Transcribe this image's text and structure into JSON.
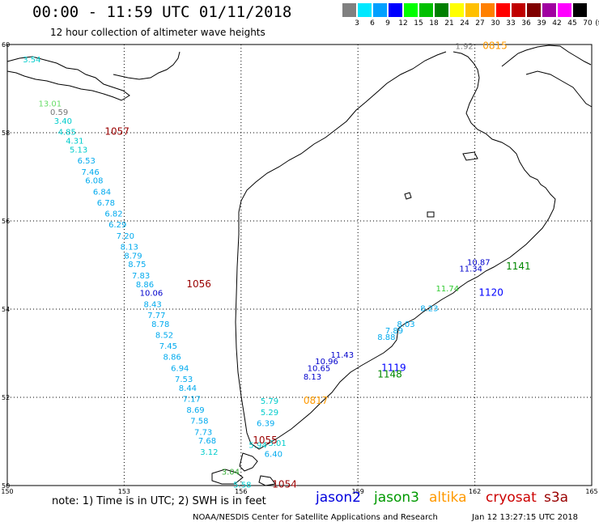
{
  "title": "00:00 - 11:59 UTC 01/11/2018",
  "subtitle": "12 hour collection of altimeter wave heights",
  "legend": {
    "unit": "(ft)",
    "bins": [
      {
        "label": "3",
        "color": "#808080"
      },
      {
        "label": "6",
        "color": "#00e8ff"
      },
      {
        "label": "9",
        "color": "#00a0ff"
      },
      {
        "label": "12",
        "color": "#0000ff"
      },
      {
        "label": "15",
        "color": "#00ff00"
      },
      {
        "label": "18",
        "color": "#00c000"
      },
      {
        "label": "21",
        "color": "#008000"
      },
      {
        "label": "24",
        "color": "#ffff00"
      },
      {
        "label": "27",
        "color": "#ffc000"
      },
      {
        "label": "30",
        "color": "#ff8000"
      },
      {
        "label": "33",
        "color": "#ff0000"
      },
      {
        "label": "36",
        "color": "#c00000"
      },
      {
        "label": "39",
        "color": "#800000"
      },
      {
        "label": "42",
        "color": "#a000a0"
      },
      {
        "label": "45",
        "color": "#ff00ff"
      },
      {
        "label": "70",
        "color": "#000000"
      }
    ]
  },
  "axes": {
    "lon_ticks": [
      "150",
      "153",
      "156",
      "159",
      "162",
      "165"
    ],
    "lat_ticks": [
      "60",
      "58",
      "56",
      "54",
      "52",
      "50"
    ]
  },
  "time_labels": [
    {
      "text": "0815",
      "color": "#ff9900",
      "lon": 162.2,
      "lat": 59.9
    },
    {
      "text": "1057",
      "color": "#990000",
      "lon": 152.5,
      "lat": 57.95
    },
    {
      "text": "1056",
      "color": "#990000",
      "lon": 154.6,
      "lat": 54.5
    },
    {
      "text": "1141",
      "color": "#008800",
      "lon": 162.8,
      "lat": 54.9
    },
    {
      "text": "1120",
      "color": "#0000ff",
      "lon": 162.1,
      "lat": 54.3
    },
    {
      "text": "1119",
      "color": "#0000ff",
      "lon": 159.6,
      "lat": 52.6
    },
    {
      "text": "1148",
      "color": "#008800",
      "lon": 159.5,
      "lat": 52.45
    },
    {
      "text": "0817",
      "color": "#ff9900",
      "lon": 157.6,
      "lat": 51.85
    },
    {
      "text": "1055",
      "color": "#990000",
      "lon": 156.3,
      "lat": 50.95
    },
    {
      "text": "1054",
      "color": "#990000",
      "lon": 156.8,
      "lat": 49.95
    }
  ],
  "tracks": [
    {
      "name": "cryosat-west",
      "points": [
        {
          "v": "3.54",
          "lon": 150.4,
          "lat": 59.6,
          "c": "#00cccc"
        },
        {
          "v": "13.01",
          "lon": 150.8,
          "lat": 58.6,
          "c": "#66dd66"
        },
        {
          "v": "0.59",
          "lon": 151.1,
          "lat": 58.4,
          "c": "#777777"
        },
        {
          "v": "3.40",
          "lon": 151.2,
          "lat": 58.2,
          "c": "#00cccc"
        },
        {
          "v": "4.85",
          "lon": 151.3,
          "lat": 57.95,
          "c": "#00cccc"
        },
        {
          "v": "4.31",
          "lon": 151.5,
          "lat": 57.75,
          "c": "#00cccc"
        },
        {
          "v": "5.13",
          "lon": 151.6,
          "lat": 57.55,
          "c": "#00cccc"
        },
        {
          "v": "6.53",
          "lon": 151.8,
          "lat": 57.3,
          "c": "#00aaee"
        },
        {
          "v": "7.46",
          "lon": 151.9,
          "lat": 57.05,
          "c": "#00aaee"
        },
        {
          "v": "6.08",
          "lon": 152.0,
          "lat": 56.85,
          "c": "#00aaee"
        },
        {
          "v": "6.84",
          "lon": 152.2,
          "lat": 56.6,
          "c": "#00aaee"
        },
        {
          "v": "6.78",
          "lon": 152.3,
          "lat": 56.35,
          "c": "#00aaee"
        },
        {
          "v": "6.82",
          "lon": 152.5,
          "lat": 56.1,
          "c": "#00aaee"
        },
        {
          "v": "6.29",
          "lon": 152.6,
          "lat": 55.85,
          "c": "#00aaee"
        },
        {
          "v": "7.20",
          "lon": 152.8,
          "lat": 55.6,
          "c": "#00aaee"
        },
        {
          "v": "8.13",
          "lon": 152.9,
          "lat": 55.35,
          "c": "#00aaee"
        },
        {
          "v": "8.79",
          "lon": 153.0,
          "lat": 55.15,
          "c": "#00aaee"
        },
        {
          "v": "8.75",
          "lon": 153.1,
          "lat": 54.95,
          "c": "#00aaee"
        },
        {
          "v": "7.83",
          "lon": 153.2,
          "lat": 54.7,
          "c": "#00aaee"
        },
        {
          "v": "8.86",
          "lon": 153.3,
          "lat": 54.5,
          "c": "#00aaee"
        },
        {
          "v": "10.06",
          "lon": 153.4,
          "lat": 54.3,
          "c": "#0000cc"
        },
        {
          "v": "8.43",
          "lon": 153.5,
          "lat": 54.05,
          "c": "#00aaee"
        },
        {
          "v": "7.77",
          "lon": 153.6,
          "lat": 53.8,
          "c": "#00aaee"
        },
        {
          "v": "8.78",
          "lon": 153.7,
          "lat": 53.6,
          "c": "#00aaee"
        },
        {
          "v": "8.52",
          "lon": 153.8,
          "lat": 53.35,
          "c": "#00aaee"
        },
        {
          "v": "7.45",
          "lon": 153.9,
          "lat": 53.1,
          "c": "#00aaee"
        },
        {
          "v": "8.86",
          "lon": 154.0,
          "lat": 52.85,
          "c": "#00aaee"
        },
        {
          "v": "6.94",
          "lon": 154.2,
          "lat": 52.6,
          "c": "#00aaee"
        },
        {
          "v": "7.53",
          "lon": 154.3,
          "lat": 52.35,
          "c": "#00aaee"
        },
        {
          "v": "8.44",
          "lon": 154.4,
          "lat": 52.15,
          "c": "#00aaee"
        },
        {
          "v": "7.17",
          "lon": 154.5,
          "lat": 51.9,
          "c": "#00aaee"
        },
        {
          "v": "8.69",
          "lon": 154.6,
          "lat": 51.65,
          "c": "#00aaee"
        },
        {
          "v": "7.58",
          "lon": 154.7,
          "lat": 51.4,
          "c": "#00aaee"
        },
        {
          "v": "7.73",
          "lon": 154.8,
          "lat": 51.15,
          "c": "#00aaee"
        },
        {
          "v": "7.68",
          "lon": 154.9,
          "lat": 50.95,
          "c": "#00aaee"
        },
        {
          "v": "3.12",
          "lon": 154.95,
          "lat": 50.7,
          "c": "#00cccc"
        }
      ]
    },
    {
      "name": "altika-coast",
      "points": [
        {
          "v": "1.92",
          "lon": 161.5,
          "lat": 59.9,
          "c": "#777777"
        },
        {
          "v": "5.79",
          "lon": 156.5,
          "lat": 51.85,
          "c": "#00cccc"
        },
        {
          "v": "5.29",
          "lon": 156.5,
          "lat": 51.6,
          "c": "#00cccc"
        },
        {
          "v": "6.39",
          "lon": 156.4,
          "lat": 51.35,
          "c": "#00aaee"
        },
        {
          "v": "5.01",
          "lon": 156.7,
          "lat": 50.9,
          "c": "#00cccc"
        },
        {
          "v": "6.40",
          "lon": 156.6,
          "lat": 50.65,
          "c": "#00aaee"
        },
        {
          "v": "5.94",
          "lon": 156.2,
          "lat": 50.85,
          "c": "#00cccc"
        },
        {
          "v": "3.04",
          "lon": 155.5,
          "lat": 50.25,
          "c": "#33aa33"
        },
        {
          "v": "5.58",
          "lon": 155.8,
          "lat": 49.95,
          "c": "#00cccc"
        }
      ]
    },
    {
      "name": "jason-se",
      "points": [
        {
          "v": "11.34",
          "lon": 161.6,
          "lat": 54.85,
          "c": "#0000cc"
        },
        {
          "v": "10.87",
          "lon": 161.8,
          "lat": 55.0,
          "c": "#0000cc"
        },
        {
          "v": "11.74",
          "lon": 161.0,
          "lat": 54.4,
          "c": "#33cc33"
        },
        {
          "v": "8.88",
          "lon": 159.5,
          "lat": 53.3,
          "c": "#00aaee"
        },
        {
          "v": "7.89",
          "lon": 159.7,
          "lat": 53.45,
          "c": "#00aaee"
        },
        {
          "v": "8.03",
          "lon": 160.0,
          "lat": 53.6,
          "c": "#00aaee"
        },
        {
          "v": "8.23",
          "lon": 160.6,
          "lat": 53.95,
          "c": "#00aaee"
        },
        {
          "v": "11.43",
          "lon": 158.3,
          "lat": 52.9,
          "c": "#0000cc"
        },
        {
          "v": "10.96",
          "lon": 157.9,
          "lat": 52.75,
          "c": "#0000cc"
        },
        {
          "v": "10.65",
          "lon": 157.7,
          "lat": 52.6,
          "c": "#0000cc"
        },
        {
          "v": "8.13",
          "lon": 157.6,
          "lat": 52.4,
          "c": "#0000cc"
        }
      ]
    }
  ],
  "note": "note: 1) Time is in UTC; 2) SWH is in feet",
  "satellites": [
    {
      "name": "jason2",
      "color": "#0000dd"
    },
    {
      "name": "jason3",
      "color": "#009900"
    },
    {
      "name": "altika",
      "color": "#ff9900"
    },
    {
      "name": "cryosat",
      "color": "#cc0000"
    },
    {
      "name": "s3a",
      "color": "#990000"
    }
  ],
  "credit": "NOAA/NESDIS Center for Satellite Applications and Research",
  "stamp": "Jan 12 13:27:15 UTC 2018"
}
